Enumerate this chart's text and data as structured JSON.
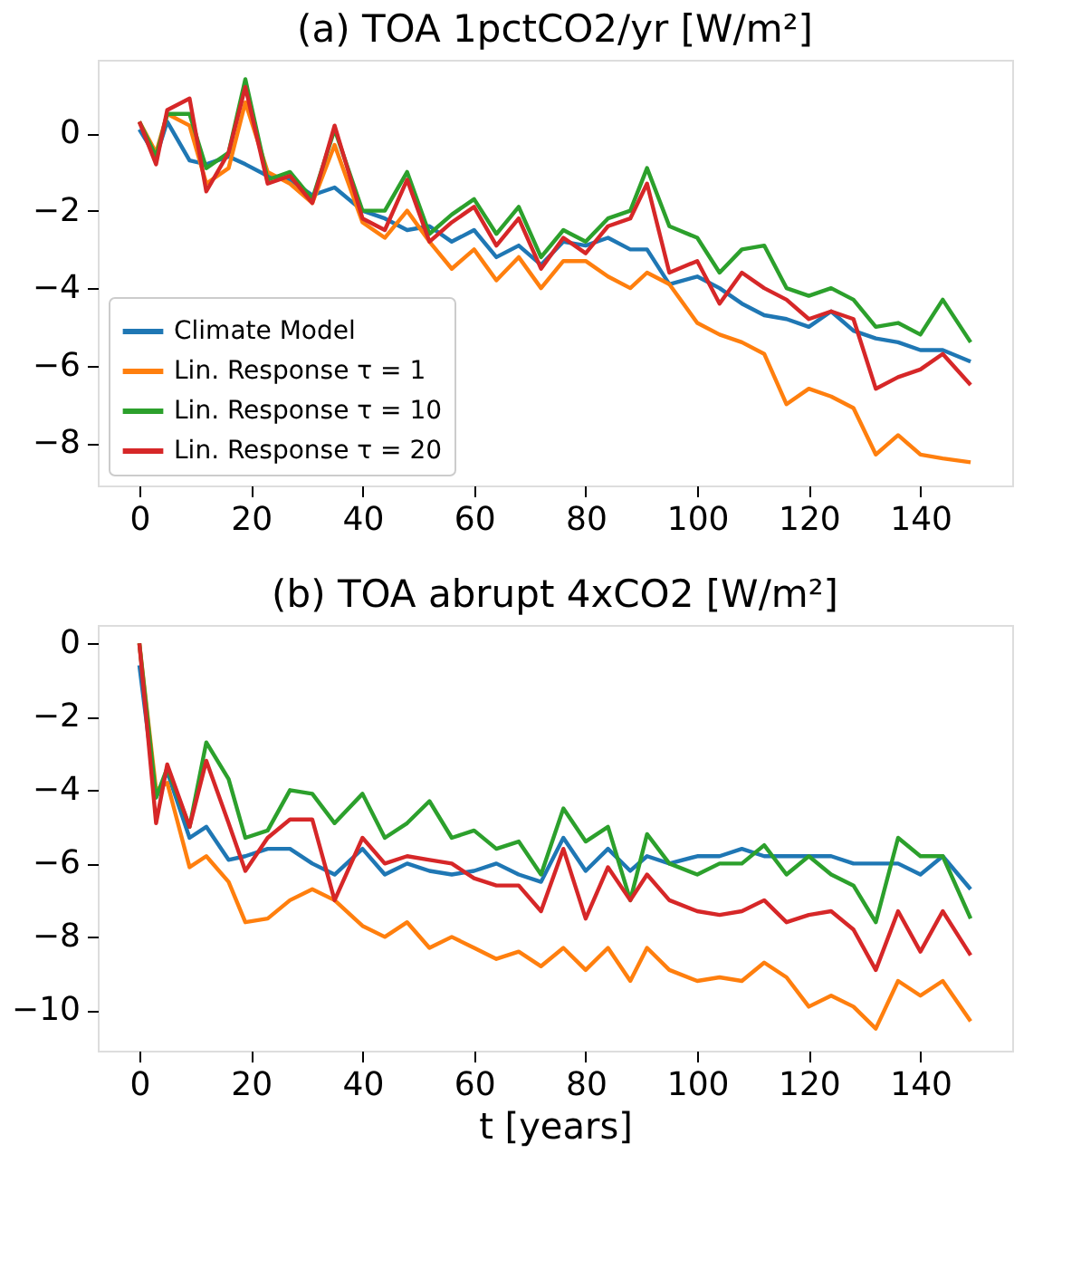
{
  "chart_data": [
    {
      "type": "line",
      "title": "(a)    TOA 1pctCO2/yr [W/m²]",
      "legend": "bottom left",
      "xlim": [
        -7.45,
        156.45
      ],
      "xticks": [
        0,
        20,
        40,
        60,
        80,
        100,
        120,
        140
      ],
      "ylim": [
        -9.1,
        1.9
      ],
      "yticks": [
        0,
        -2,
        -4,
        -6,
        -8
      ],
      "x": [
        0,
        3,
        5,
        9,
        12,
        16,
        19,
        23,
        27,
        31,
        35,
        40,
        44,
        48,
        52,
        56,
        60,
        64,
        68,
        72,
        76,
        80,
        84,
        88,
        91,
        95,
        100,
        104,
        108,
        112,
        116,
        120,
        124,
        128,
        132,
        136,
        140,
        144,
        149
      ],
      "series": [
        {
          "name": "Climate Model",
          "color": "#1f77b4",
          "values": [
            0.1,
            -0.6,
            0.3,
            -0.7,
            -0.8,
            -0.6,
            -0.8,
            -1.1,
            -1.2,
            -1.6,
            -1.4,
            -2.0,
            -2.2,
            -2.5,
            -2.4,
            -2.8,
            -2.5,
            -3.2,
            -2.9,
            -3.4,
            -2.8,
            -2.9,
            -2.7,
            -3.0,
            -3.0,
            -3.9,
            -3.7,
            -4.0,
            -4.4,
            -4.7,
            -4.8,
            -5.0,
            -4.6,
            -5.1,
            -5.3,
            -5.4,
            -5.6,
            -5.6,
            -5.9
          ]
        },
        {
          "name": "Lin. Response τ = 1",
          "color": "#ff7f0e",
          "values": [
            0.3,
            -0.5,
            0.5,
            0.2,
            -1.3,
            -0.9,
            0.8,
            -1.0,
            -1.3,
            -1.8,
            -0.3,
            -2.3,
            -2.7,
            -2.0,
            -2.8,
            -3.5,
            -3.0,
            -3.8,
            -3.2,
            -4.0,
            -3.3,
            -3.3,
            -3.7,
            -4.0,
            -3.6,
            -3.9,
            -4.9,
            -5.2,
            -5.4,
            -5.7,
            -7.0,
            -6.6,
            -6.8,
            -7.1,
            -8.3,
            -7.8,
            -8.3,
            -8.4,
            -8.5
          ]
        },
        {
          "name": "Lin. Response τ = 10",
          "color": "#2ca02c",
          "values": [
            0.3,
            -0.6,
            0.5,
            0.5,
            -0.9,
            -0.5,
            1.4,
            -1.2,
            -1.0,
            -1.7,
            0.1,
            -2.0,
            -2.0,
            -1.0,
            -2.6,
            -2.1,
            -1.7,
            -2.6,
            -1.9,
            -3.2,
            -2.5,
            -2.8,
            -2.2,
            -2.0,
            -0.9,
            -2.4,
            -2.7,
            -3.6,
            -3.0,
            -2.9,
            -4.0,
            -4.2,
            -4.0,
            -4.3,
            -5.0,
            -4.9,
            -5.2,
            -4.3,
            -5.4
          ]
        },
        {
          "name": "Lin. Response τ = 20",
          "color": "#d62728",
          "values": [
            0.3,
            -0.8,
            0.6,
            0.9,
            -1.5,
            -0.5,
            1.2,
            -1.3,
            -1.1,
            -1.8,
            0.2,
            -2.2,
            -2.5,
            -1.2,
            -2.8,
            -2.3,
            -1.9,
            -2.9,
            -2.2,
            -3.5,
            -2.7,
            -3.1,
            -2.4,
            -2.2,
            -1.3,
            -3.6,
            -3.3,
            -4.4,
            -3.6,
            -4.0,
            -4.3,
            -4.8,
            -4.6,
            -4.8,
            -6.6,
            -6.3,
            -6.1,
            -5.7,
            -6.5
          ]
        }
      ]
    },
    {
      "type": "line",
      "title": "(b)    TOA abrupt 4xCO2 [W/m²]",
      "xlabel": "t [years]",
      "xlim": [
        -7.45,
        156.45
      ],
      "xticks": [
        0,
        20,
        40,
        60,
        80,
        100,
        120,
        140
      ],
      "ylim": [
        -11.1,
        0.5
      ],
      "yticks": [
        0,
        -2,
        -4,
        -6,
        -8,
        -10
      ],
      "x": [
        0,
        3,
        5,
        9,
        12,
        16,
        19,
        23,
        27,
        31,
        35,
        40,
        44,
        48,
        52,
        56,
        60,
        64,
        68,
        72,
        76,
        80,
        84,
        88,
        91,
        95,
        100,
        104,
        108,
        112,
        116,
        120,
        124,
        128,
        132,
        136,
        140,
        144,
        149
      ],
      "series": [
        {
          "color": "#1f77b4",
          "values": [
            -0.6,
            -4.2,
            -3.5,
            -5.3,
            -5.0,
            -5.9,
            -5.8,
            -5.6,
            -5.6,
            -6.0,
            -6.3,
            -5.6,
            -6.3,
            -6.0,
            -6.2,
            -6.3,
            -6.2,
            -6.0,
            -6.3,
            -6.5,
            -5.3,
            -6.2,
            -5.6,
            -6.2,
            -5.8,
            -6.0,
            -5.8,
            -5.8,
            -5.6,
            -5.8,
            -5.8,
            -5.8,
            -5.8,
            -6.0,
            -6.0,
            -6.0,
            -6.3,
            -5.8,
            -6.7
          ]
        },
        {
          "color": "#ff7f0e",
          "values": [
            0,
            -4.0,
            -3.8,
            -6.1,
            -5.8,
            -6.5,
            -7.6,
            -7.5,
            -7.0,
            -6.7,
            -7.0,
            -7.7,
            -8.0,
            -7.6,
            -8.3,
            -8.0,
            -8.3,
            -8.6,
            -8.4,
            -8.8,
            -8.3,
            -8.9,
            -8.3,
            -9.2,
            -8.3,
            -8.9,
            -9.2,
            -9.1,
            -9.2,
            -8.7,
            -9.1,
            -9.9,
            -9.6,
            -9.9,
            -10.5,
            -9.2,
            -9.6,
            -9.2,
            -10.3
          ]
        },
        {
          "color": "#2ca02c",
          "values": [
            0,
            -4.2,
            -3.4,
            -5.0,
            -2.7,
            -3.7,
            -5.3,
            -5.1,
            -4.0,
            -4.1,
            -4.9,
            -4.1,
            -5.3,
            -4.9,
            -4.3,
            -5.3,
            -5.1,
            -5.6,
            -5.4,
            -6.3,
            -4.5,
            -5.4,
            -5.0,
            -7.0,
            -5.2,
            -6.0,
            -6.3,
            -6.0,
            -6.0,
            -5.5,
            -6.3,
            -5.8,
            -6.3,
            -6.6,
            -7.6,
            -5.3,
            -5.8,
            -5.8,
            -7.5
          ]
        },
        {
          "color": "#d62728",
          "values": [
            0,
            -4.9,
            -3.3,
            -5.0,
            -3.2,
            -4.9,
            -6.2,
            -5.3,
            -4.8,
            -4.8,
            -7.0,
            -5.3,
            -6.0,
            -5.8,
            -5.9,
            -6.0,
            -6.4,
            -6.6,
            -6.6,
            -7.3,
            -5.6,
            -7.5,
            -6.1,
            -7.0,
            -6.3,
            -7.0,
            -7.3,
            -7.4,
            -7.3,
            -7.0,
            -7.6,
            -7.4,
            -7.3,
            -7.8,
            -8.9,
            -7.3,
            -8.4,
            -7.3,
            -8.5
          ]
        }
      ]
    }
  ]
}
